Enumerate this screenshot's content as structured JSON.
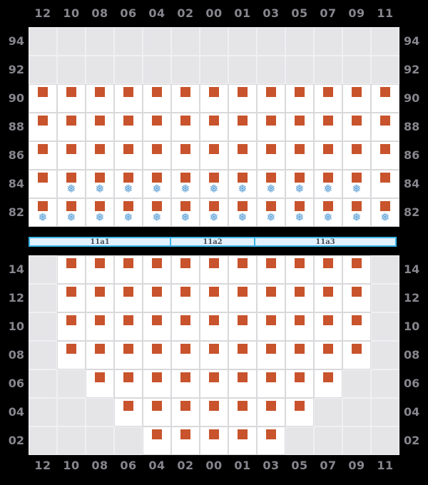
{
  "colors": {
    "background": "#000000",
    "axis_label": "#86868e",
    "empty_cell_fill": "#e5e5e8",
    "empty_cell_border": "#f0f0f2",
    "slot_cell_fill": "#ffffff",
    "slot_cell_border": "#d9d9dc",
    "container_square": "#c8532c",
    "reefer_snowflake": "#5ea2d8",
    "hatch_fill": "#e2f1fb",
    "hatch_border": "#3db6e9",
    "hatch_text": "#4d4d55"
  },
  "icons": {
    "container_square": "filled-square",
    "reefer_snowflake_glyph": "❅"
  },
  "cell_codes": {
    "E": "empty",
    "B": "container",
    "BF": "container-with-reefer-snowflake"
  },
  "columns": [
    "12",
    "10",
    "08",
    "06",
    "04",
    "02",
    "00",
    "01",
    "03",
    "05",
    "07",
    "09",
    "11"
  ],
  "upper_grid": {
    "rows": [
      {
        "tier": "94",
        "cells": [
          "E",
          "E",
          "E",
          "E",
          "E",
          "E",
          "E",
          "E",
          "E",
          "E",
          "E",
          "E",
          "E"
        ]
      },
      {
        "tier": "92",
        "cells": [
          "E",
          "E",
          "E",
          "E",
          "E",
          "E",
          "E",
          "E",
          "E",
          "E",
          "E",
          "E",
          "E"
        ]
      },
      {
        "tier": "90",
        "cells": [
          "B",
          "B",
          "B",
          "B",
          "B",
          "B",
          "B",
          "B",
          "B",
          "B",
          "B",
          "B",
          "B"
        ]
      },
      {
        "tier": "88",
        "cells": [
          "B",
          "B",
          "B",
          "B",
          "B",
          "B",
          "B",
          "B",
          "B",
          "B",
          "B",
          "B",
          "B"
        ]
      },
      {
        "tier": "86",
        "cells": [
          "B",
          "B",
          "B",
          "B",
          "B",
          "B",
          "B",
          "B",
          "B",
          "B",
          "B",
          "B",
          "B"
        ]
      },
      {
        "tier": "84",
        "cells": [
          "B",
          "BF",
          "BF",
          "BF",
          "BF",
          "BF",
          "BF",
          "BF",
          "BF",
          "BF",
          "BF",
          "BF",
          "B"
        ]
      },
      {
        "tier": "82",
        "cells": [
          "BF",
          "BF",
          "BF",
          "BF",
          "BF",
          "BF",
          "BF",
          "BF",
          "BF",
          "BF",
          "BF",
          "BF",
          "BF"
        ]
      }
    ]
  },
  "hatch_bar": {
    "segments": [
      {
        "label": "11a1",
        "columns": 5
      },
      {
        "label": "11a2",
        "columns": 3
      },
      {
        "label": "11a3",
        "columns": 5
      }
    ]
  },
  "lower_grid": {
    "rows": [
      {
        "tier": "14",
        "cells": [
          "E",
          "B",
          "B",
          "B",
          "B",
          "B",
          "B",
          "B",
          "B",
          "B",
          "B",
          "B",
          "E"
        ]
      },
      {
        "tier": "12",
        "cells": [
          "E",
          "B",
          "B",
          "B",
          "B",
          "B",
          "B",
          "B",
          "B",
          "B",
          "B",
          "B",
          "E"
        ]
      },
      {
        "tier": "10",
        "cells": [
          "E",
          "B",
          "B",
          "B",
          "B",
          "B",
          "B",
          "B",
          "B",
          "B",
          "B",
          "B",
          "E"
        ]
      },
      {
        "tier": "08",
        "cells": [
          "E",
          "B",
          "B",
          "B",
          "B",
          "B",
          "B",
          "B",
          "B",
          "B",
          "B",
          "B",
          "E"
        ]
      },
      {
        "tier": "06",
        "cells": [
          "E",
          "E",
          "B",
          "B",
          "B",
          "B",
          "B",
          "B",
          "B",
          "B",
          "B",
          "E",
          "E"
        ]
      },
      {
        "tier": "04",
        "cells": [
          "E",
          "E",
          "E",
          "B",
          "B",
          "B",
          "B",
          "B",
          "B",
          "B",
          "E",
          "E",
          "E"
        ]
      },
      {
        "tier": "02",
        "cells": [
          "E",
          "E",
          "E",
          "E",
          "B",
          "B",
          "B",
          "B",
          "B",
          "E",
          "E",
          "E",
          "E"
        ]
      }
    ]
  }
}
